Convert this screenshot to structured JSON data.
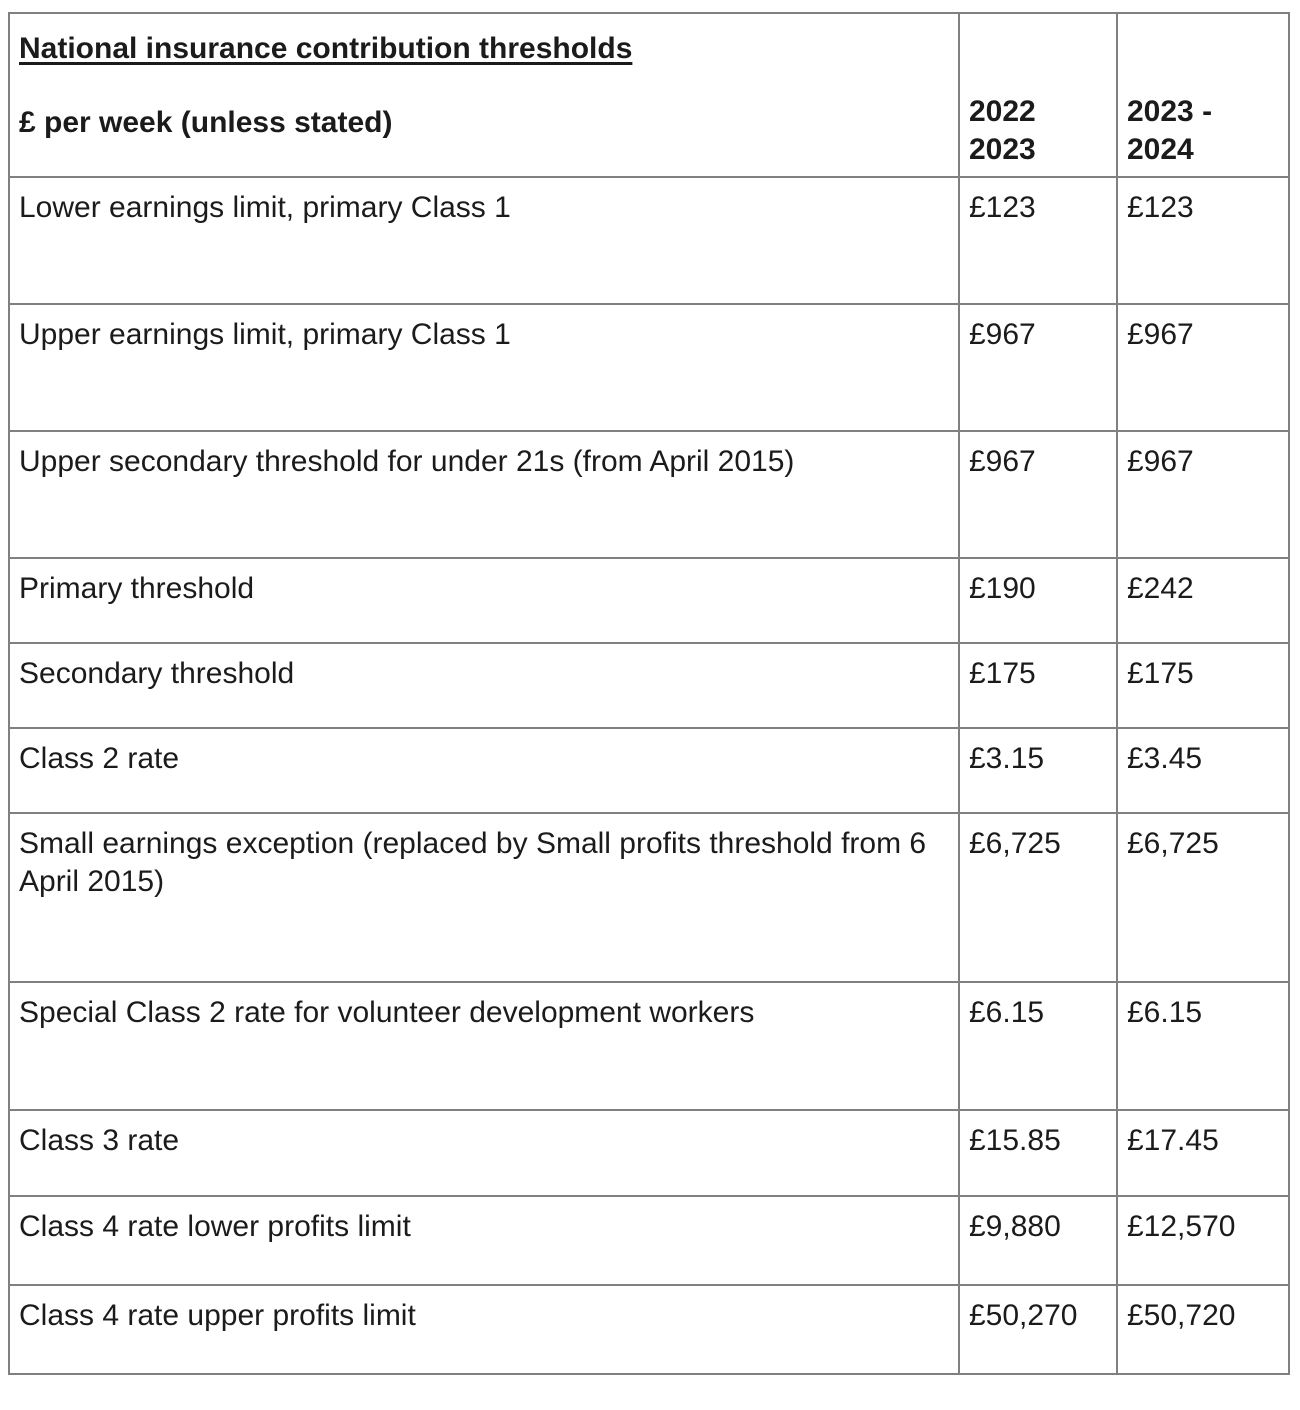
{
  "table": {
    "title": "National insurance contribution thresholds",
    "subtitle": "£ per week (unless stated)",
    "columns": {
      "period_1": "2022\n2023",
      "period_2": "2023 -\n2024"
    },
    "rows": [
      {
        "label": "Lower earnings limit, primary Class 1",
        "v2022_2023": "£123",
        "v2023_2024": "£123"
      },
      {
        "label": "Upper earnings limit, primary Class 1",
        "v2022_2023": "£967",
        "v2023_2024": "£967"
      },
      {
        "label": "Upper secondary threshold for under 21s (from April 2015)",
        "v2022_2023": "£967",
        "v2023_2024": "£967"
      },
      {
        "label": "Primary threshold",
        "v2022_2023": "£190",
        "v2023_2024": "£242"
      },
      {
        "label": "Secondary threshold",
        "v2022_2023": "£175",
        "v2023_2024": "£175"
      },
      {
        "label": "Class 2 rate",
        "v2022_2023": "£3.15",
        "v2023_2024": "£3.45"
      },
      {
        "label": "Small earnings exception (replaced by Small profits threshold from 6 April 2015)",
        "v2022_2023": "£6,725",
        "v2023_2024": "£6,725"
      },
      {
        "label": "Special Class 2 rate for volunteer development workers",
        "v2022_2023": "£6.15",
        "v2023_2024": "£6.15"
      },
      {
        "label": "Class 3 rate",
        "v2022_2023": "£15.85",
        "v2023_2024": "£17.45"
      },
      {
        "label": "Class 4 rate lower profits limit",
        "v2022_2023": "£9,880",
        "v2023_2024": "£12,570"
      },
      {
        "label": "Class 4 rate upper profits limit",
        "v2022_2023": "£50,270",
        "v2023_2024": "£50,720"
      }
    ],
    "colors": {
      "border": "#808080",
      "text": "#1b1b1b",
      "background": "#ffffff"
    }
  }
}
